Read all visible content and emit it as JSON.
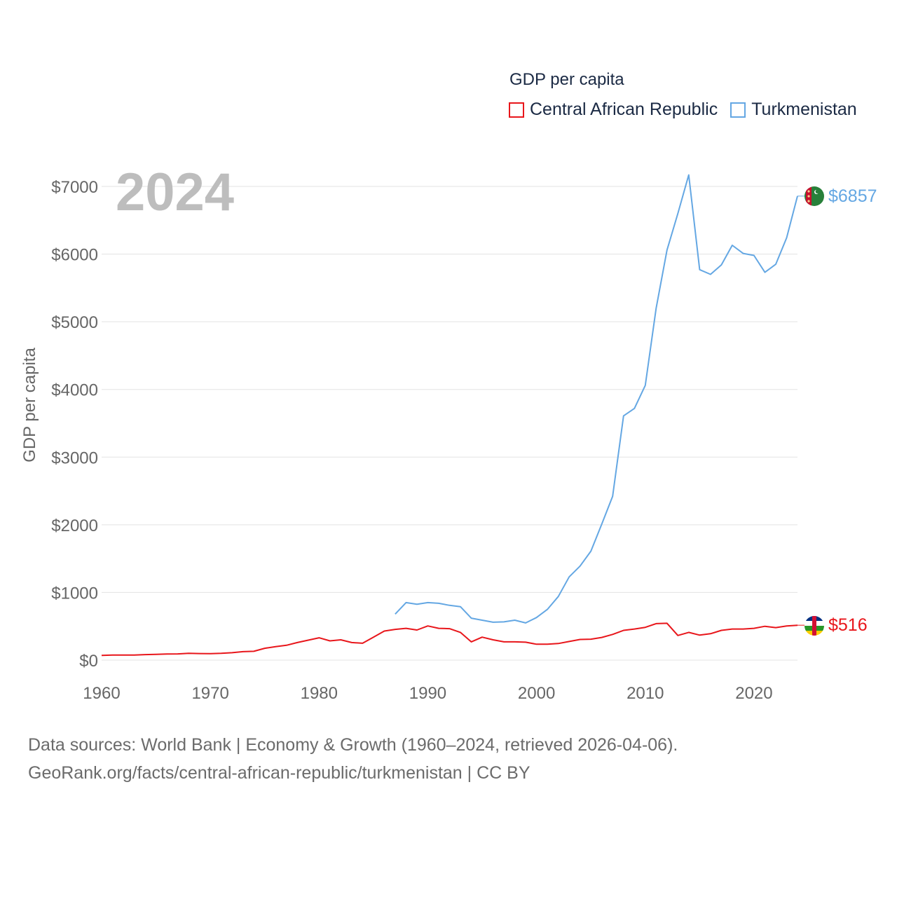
{
  "legend": {
    "title": "GDP per capita",
    "items": [
      {
        "label": "Central African Republic",
        "color": "#e8161b"
      },
      {
        "label": "Turkmenistan",
        "color": "#64a7e3"
      }
    ]
  },
  "footer": {
    "line1": "Data sources: World Bank | Economy & Growth (1960–2024, retrieved 2026-04-06).",
    "line2": "GeoRank.org/facts/central-african-republic/turkmenistan | CC BY"
  },
  "chart_data": {
    "type": "line",
    "title": "GDP per capita",
    "ylabel": "GDP per capita",
    "xlabel": "",
    "year_display": "2024",
    "xlim": [
      1960,
      2024
    ],
    "ylim": [
      0,
      7000
    ],
    "yticks": [
      0,
      1000,
      2000,
      3000,
      4000,
      5000,
      6000,
      7000
    ],
    "ytick_labels": [
      "$0",
      "$1000",
      "$2000",
      "$3000",
      "$4000",
      "$5000",
      "$6000",
      "$7000"
    ],
    "xticks": [
      1960,
      1970,
      1980,
      1990,
      2000,
      2010,
      2020
    ],
    "xtick_labels": [
      "1960",
      "1970",
      "1980",
      "1990",
      "2000",
      "2010",
      "2020"
    ],
    "grid": true,
    "series": [
      {
        "name": "Central African Republic",
        "color": "#e8161b",
        "end_label": "$516",
        "x": [
          1960,
          1961,
          1962,
          1963,
          1964,
          1965,
          1966,
          1967,
          1968,
          1969,
          1970,
          1971,
          1972,
          1973,
          1974,
          1975,
          1976,
          1977,
          1978,
          1979,
          1980,
          1981,
          1982,
          1983,
          1984,
          1985,
          1986,
          1987,
          1988,
          1989,
          1990,
          1991,
          1992,
          1993,
          1994,
          1995,
          1996,
          1997,
          1998,
          1999,
          2000,
          2001,
          2002,
          2003,
          2004,
          2005,
          2006,
          2007,
          2008,
          2009,
          2010,
          2011,
          2012,
          2013,
          2014,
          2015,
          2016,
          2017,
          2018,
          2019,
          2020,
          2021,
          2022,
          2023,
          2024
        ],
        "values": [
          70,
          76,
          76,
          76,
          82,
          86,
          90,
          92,
          100,
          97,
          95,
          100,
          110,
          125,
          130,
          175,
          200,
          220,
          260,
          295,
          330,
          285,
          300,
          260,
          250,
          340,
          430,
          455,
          470,
          445,
          505,
          470,
          465,
          410,
          270,
          340,
          300,
          270,
          270,
          265,
          235,
          235,
          245,
          275,
          305,
          310,
          335,
          380,
          440,
          460,
          485,
          540,
          545,
          365,
          410,
          370,
          390,
          440,
          460,
          460,
          470,
          500,
          480,
          505,
          516
        ]
      },
      {
        "name": "Turkmenistan",
        "color": "#64a7e3",
        "end_label": "$6857",
        "x": [
          1987,
          1988,
          1989,
          1990,
          1991,
          1992,
          1993,
          1994,
          1995,
          1996,
          1997,
          1998,
          1999,
          2000,
          2001,
          2002,
          2003,
          2004,
          2005,
          2006,
          2007,
          2008,
          2009,
          2010,
          2011,
          2012,
          2013,
          2014,
          2015,
          2016,
          2017,
          2018,
          2019,
          2020,
          2021,
          2022,
          2023,
          2024
        ],
        "values": [
          680,
          850,
          825,
          850,
          840,
          810,
          790,
          620,
          590,
          560,
          565,
          590,
          550,
          630,
          750,
          940,
          1230,
          1390,
          1610,
          2010,
          2420,
          3610,
          3720,
          4060,
          5200,
          6060,
          6600,
          7170,
          5770,
          5700,
          5840,
          6130,
          6010,
          5980,
          5730,
          5850,
          6240,
          6857
        ]
      }
    ]
  }
}
